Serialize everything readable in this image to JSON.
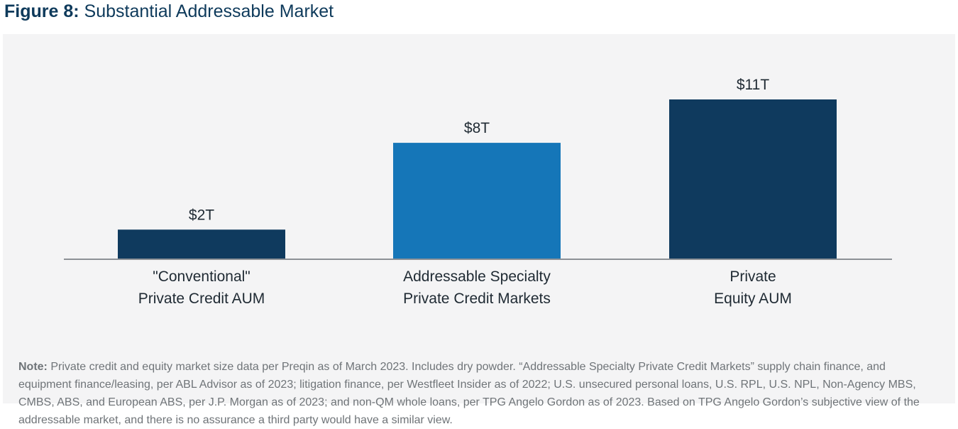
{
  "figure": {
    "label": "Figure 8:",
    "title": "Substantial Addressable Market"
  },
  "chart_data": {
    "type": "bar",
    "title": "Substantial Addressable Market",
    "xlabel": "",
    "ylabel": "",
    "ylim": [
      0,
      11
    ],
    "grid": false,
    "categories": [
      [
        "\"Conventional\"",
        "Private Credit AUM"
      ],
      [
        "Addressable Specialty",
        "Private Credit Markets"
      ],
      [
        "Private",
        "Equity AUM"
      ]
    ],
    "values": [
      2,
      8,
      11
    ],
    "data_labels": [
      "$2T",
      "$8T",
      "$11T"
    ],
    "colors": [
      "#0f3a5e",
      "#1576b8",
      "#0f3a5e"
    ]
  },
  "note": {
    "label": "Note:",
    "text": "Private credit and equity market size data per Preqin as of March 2023. Includes dry powder. “Addressable Specialty Private Credit Markets” supply chain finance, and equipment finance/leasing, per ABL Advisor as of 2023; litigation finance, per Westfleet Insider as of 2022; U.S. unsecured personal loans, U.S. RPL, U.S. NPL, Non-Agency MBS, CMBS, ABS, and European ABS, per J.P. Morgan as of 2023; and non-QM whole loans, per TPG Angelo Gordon as of 2023. Based on TPG Angelo Gordon’s subjective view of the addressable market, and there is no assurance a third party would have a similar view."
  }
}
